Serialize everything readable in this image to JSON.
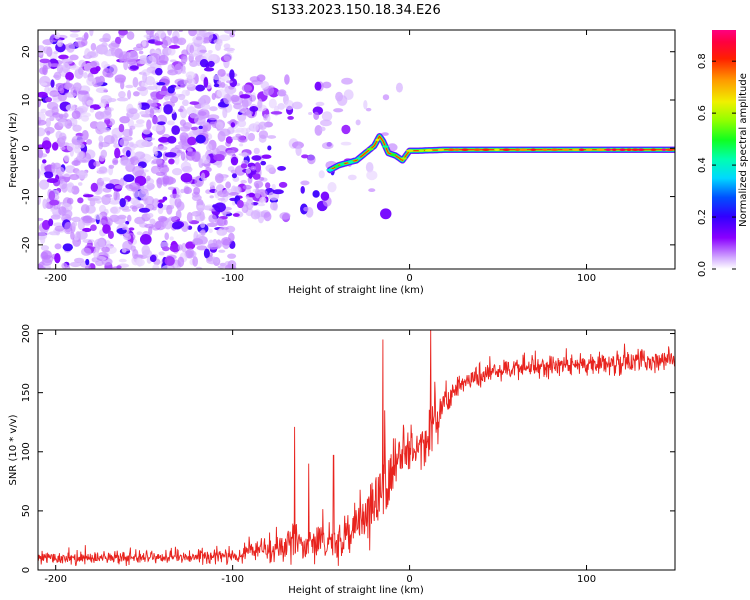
{
  "figure": {
    "title": "S133.2023.150.18.34.E26"
  },
  "chart_data": [
    {
      "type": "heatmap",
      "title": "S133.2023.150.18.34.E26",
      "xlabel": "Height of straight line (km)",
      "ylabel": "Frequency (Hz)",
      "xlim": [
        -210,
        150
      ],
      "ylim": [
        -25,
        24.5
      ],
      "xticks": [
        -200,
        -100,
        0,
        100
      ],
      "xtick_labels": [
        "-200",
        "-100",
        "0",
        "100"
      ],
      "yticks": [
        -20,
        -10,
        0,
        10,
        20
      ],
      "ytick_labels": [
        "-20",
        "-10",
        "0",
        "10",
        "20"
      ],
      "colorbar": {
        "label": "Normalized spectral amplitude",
        "range": [
          0,
          0.92
        ],
        "ticks": [
          0.0,
          0.2,
          0.4,
          0.6,
          0.8
        ],
        "tick_labels": [
          "0.0",
          "0.2",
          "0.4",
          "0.6",
          "0.8"
        ],
        "colormap": "hsv (white-purple-blue-cyan-green-yellow-orange-red-magenta)"
      },
      "ridge": {
        "x": [
          -45,
          -40,
          -35,
          -30,
          -25,
          -20,
          -17,
          -15,
          -12,
          -8,
          -4,
          0,
          5,
          20,
          50,
          100,
          150
        ],
        "freq": [
          -4.5,
          -3.5,
          -3,
          -2.5,
          -1,
          0.5,
          2.5,
          1.5,
          -1,
          -1.5,
          -2.5,
          -0.5,
          -0.5,
          -0.3,
          -0.3,
          -0.3,
          -0.3
        ],
        "amplitude": [
          0.45,
          0.45,
          0.4,
          0.35,
          0.5,
          0.6,
          0.7,
          0.5,
          0.5,
          0.55,
          0.55,
          0.6,
          0.55,
          0.75,
          0.75,
          0.8,
          0.9
        ]
      },
      "grid": false
    },
    {
      "type": "line",
      "xlabel": "Height of straight line (km)",
      "ylabel": "SNR (10 * v/v)",
      "xlim": [
        -210,
        150
      ],
      "ylim": [
        0,
        203
      ],
      "xticks": [
        -200,
        -100,
        0,
        100
      ],
      "xtick_labels": [
        "-200",
        "-100",
        "0",
        "100"
      ],
      "yticks": [
        0,
        50,
        100,
        150,
        200
      ],
      "ytick_labels": [
        "0",
        "50",
        "100",
        "150",
        "200"
      ],
      "color": "#e8231e",
      "grid": false,
      "envelope": {
        "x": [
          -210,
          -150,
          -100,
          -90,
          -80,
          -70,
          -65,
          -60,
          -50,
          -40,
          -30,
          -20,
          -15,
          -10,
          -5,
          0,
          5,
          10,
          15,
          20,
          25,
          30,
          40,
          50,
          60,
          80,
          100,
          120,
          150
        ],
        "mean": [
          10,
          10,
          12,
          15,
          18,
          22,
          30,
          20,
          22,
          25,
          38,
          55,
          70,
          80,
          95,
          100,
          105,
          115,
          125,
          140,
          150,
          158,
          163,
          168,
          170,
          172,
          174,
          176,
          178
        ],
        "spread": [
          5,
          5,
          6,
          8,
          10,
          14,
          22,
          12,
          14,
          18,
          22,
          28,
          30,
          30,
          28,
          25,
          22,
          20,
          18,
          14,
          10,
          9,
          9,
          9,
          9,
          9,
          9,
          9,
          10
        ]
      },
      "peaks": [
        {
          "x": -65,
          "y": 121
        },
        {
          "x": -57,
          "y": 90
        },
        {
          "x": -43,
          "y": 97
        },
        {
          "x": -15,
          "y": 195
        },
        {
          "x": -14,
          "y": 135
        },
        {
          "x": 12,
          "y": 205
        }
      ]
    }
  ]
}
